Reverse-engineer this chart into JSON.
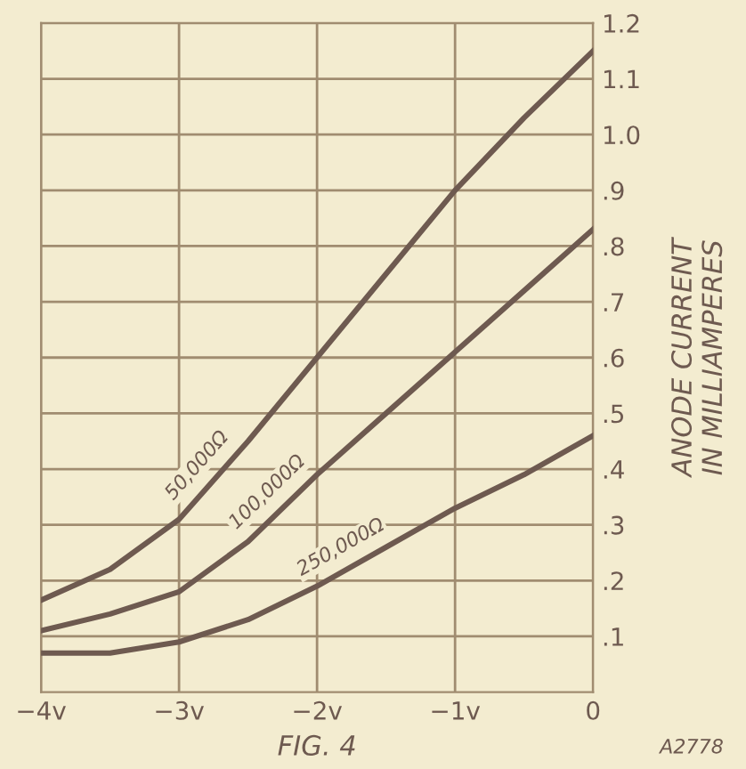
{
  "chart_data": {
    "type": "line",
    "xlabel": "FIG. 4",
    "ylabel": "ANODE CURRENT\nIN MILLIAMPERES",
    "annotations": [
      "A2778"
    ],
    "x": [
      -4,
      -3.5,
      -3,
      -2.5,
      -2,
      -1.5,
      -1,
      -0.5,
      0
    ],
    "series": [
      {
        "name": "50,000Ω",
        "color": "#6e5a50",
        "values": [
          0.165,
          0.22,
          0.31,
          0.45,
          0.6,
          0.75,
          0.9,
          1.03,
          1.15
        ]
      },
      {
        "name": "100,000Ω",
        "color": "#6e5a50",
        "values": [
          0.11,
          0.14,
          0.18,
          0.27,
          0.39,
          0.5,
          0.61,
          0.72,
          0.83
        ]
      },
      {
        "name": "250,000Ω",
        "color": "#6e5a50",
        "values": [
          0.07,
          0.07,
          0.09,
          0.13,
          0.19,
          0.26,
          0.33,
          0.39,
          0.46
        ]
      }
    ],
    "xlim": [
      -4,
      0
    ],
    "xticks": [
      {
        "value": -4,
        "label": "−4v"
      },
      {
        "value": -3,
        "label": "−3v"
      },
      {
        "value": -2,
        "label": "−2v"
      },
      {
        "value": -1,
        "label": "−1v"
      },
      {
        "value": 0,
        "label": "0"
      }
    ],
    "ylim": [
      0,
      1.2
    ],
    "yticks": [
      {
        "value": 0.1,
        "label": ".1"
      },
      {
        "value": 0.2,
        "label": ".2"
      },
      {
        "value": 0.3,
        "label": ".3"
      },
      {
        "value": 0.4,
        "label": ".4"
      },
      {
        "value": 0.5,
        "label": ".5"
      },
      {
        "value": 0.6,
        "label": ".6"
      },
      {
        "value": 0.7,
        "label": ".7"
      },
      {
        "value": 0.8,
        "label": ".8"
      },
      {
        "value": 0.9,
        "label": ".9"
      },
      {
        "value": 1.0,
        "label": "1.0"
      },
      {
        "value": 1.1,
        "label": "1.1"
      },
      {
        "value": 1.2,
        "label": "1.2"
      }
    ],
    "grid": true,
    "legend": false,
    "marker": "none",
    "line_style": "solid"
  }
}
